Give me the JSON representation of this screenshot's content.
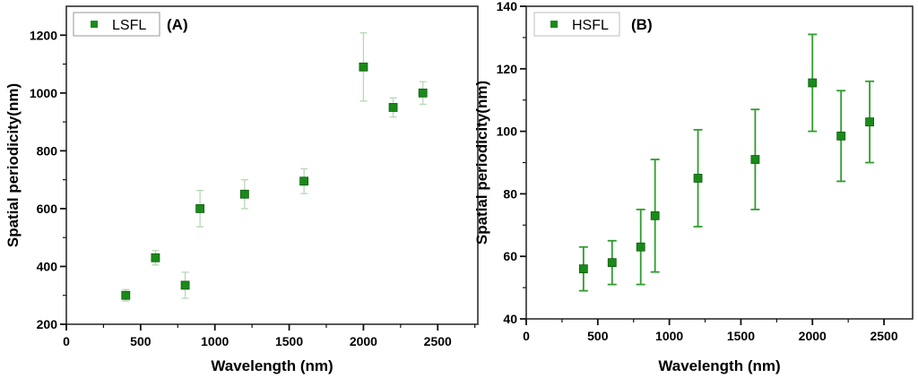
{
  "figure": {
    "background": "#ffffff",
    "frame_color": "#2e2e2e",
    "tick_color": "#111111",
    "text_color": "#000000"
  },
  "chart_data": [
    {
      "id": "A",
      "type": "scatter",
      "panel_label": "(A)",
      "legend": {
        "label": "LSFL",
        "position": "top-left",
        "marker_color": "#1a8a1a",
        "box_border": "#a8a8a8"
      },
      "xlabel": "Wavelength (nm)",
      "ylabel": "Spatial periodicity(nm)",
      "xlim": [
        0,
        2770
      ],
      "ylim": [
        200,
        1300
      ],
      "xticks": [
        0,
        500,
        1000,
        1500,
        2000,
        2500
      ],
      "yticks": [
        200,
        400,
        600,
        800,
        1000,
        1200
      ],
      "x_minor_step": 250,
      "y_minor_step": 100,
      "grid": false,
      "series": [
        {
          "name": "LSFL",
          "marker": "square",
          "marker_color": "#1a8a1a",
          "marker_edge": "#0e5c0e",
          "errorbar_color": "#b7d7b7",
          "x": [
            400,
            600,
            800,
            900,
            1200,
            1600,
            2000,
            2200,
            2400
          ],
          "y": [
            300,
            430,
            335,
            600,
            650,
            695,
            1090,
            950,
            1000
          ],
          "yerr": [
            20,
            25,
            45,
            63,
            50,
            43,
            118,
            33,
            39
          ]
        }
      ]
    },
    {
      "id": "B",
      "type": "scatter",
      "panel_label": "(B)",
      "legend": {
        "label": "HSFL",
        "position": "top-left",
        "marker_color": "#1a8a1a",
        "box_border": "#c8c8c8"
      },
      "xlabel": "Wavelength (nm)",
      "ylabel": "Spatial periodicity(nm)",
      "xlim": [
        0,
        2700
      ],
      "ylim": [
        40,
        140
      ],
      "xticks": [
        0,
        500,
        1000,
        1500,
        2000,
        2500
      ],
      "yticks": [
        40,
        60,
        80,
        100,
        120,
        140
      ],
      "x_minor_step": 250,
      "y_minor_step": 10,
      "grid": false,
      "series": [
        {
          "name": "HSFL",
          "marker": "square",
          "marker_color": "#1a8a1a",
          "marker_edge": "#0e5c0e",
          "errorbar_color": "#2f9c2f",
          "x": [
            400,
            600,
            800,
            900,
            1200,
            1600,
            2000,
            2200,
            2400
          ],
          "y": [
            56,
            58,
            63,
            73,
            85,
            91,
            115.5,
            98.5,
            103
          ],
          "yerr": [
            7,
            7,
            12,
            18,
            15.5,
            16,
            15.5,
            14.5,
            13
          ]
        }
      ]
    }
  ]
}
